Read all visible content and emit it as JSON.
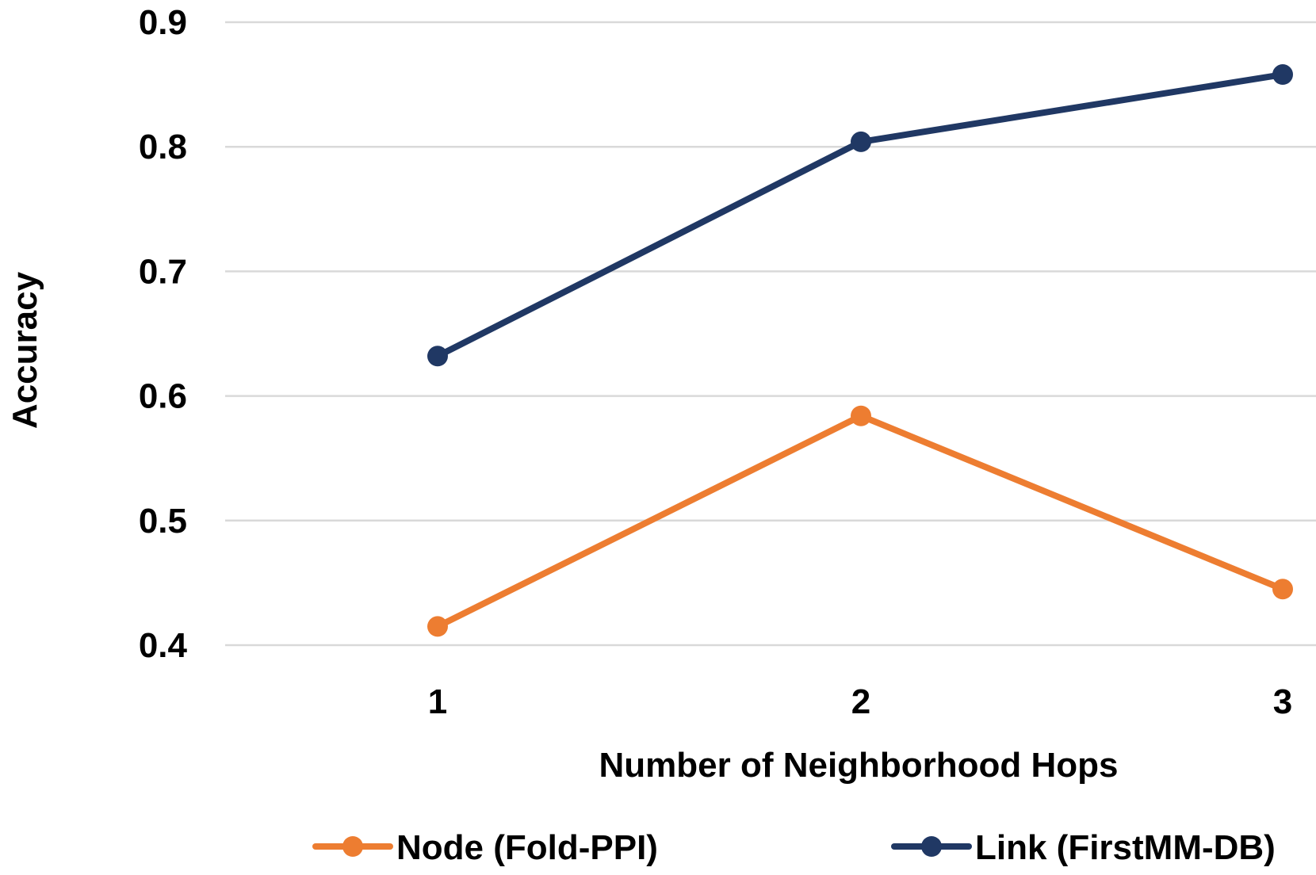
{
  "chart_data": {
    "type": "line",
    "title": "",
    "xlabel": "Number of Neighborhood Hops",
    "ylabel": "Accuracy",
    "categories": [
      "1",
      "2",
      "3"
    ],
    "ylim": [
      0.4,
      0.9
    ],
    "yticks": [
      "0.4",
      "0.5",
      "0.6",
      "0.7",
      "0.8",
      "0.9"
    ],
    "grid": true,
    "legend_position": "bottom",
    "series": [
      {
        "name": "Node (Fold-PPI)",
        "color": "#ed7d31",
        "values": [
          0.415,
          0.584,
          0.445
        ]
      },
      {
        "name": "Link (FirstMM-DB)",
        "color": "#203864",
        "values": [
          0.632,
          0.804,
          0.858
        ]
      }
    ]
  }
}
